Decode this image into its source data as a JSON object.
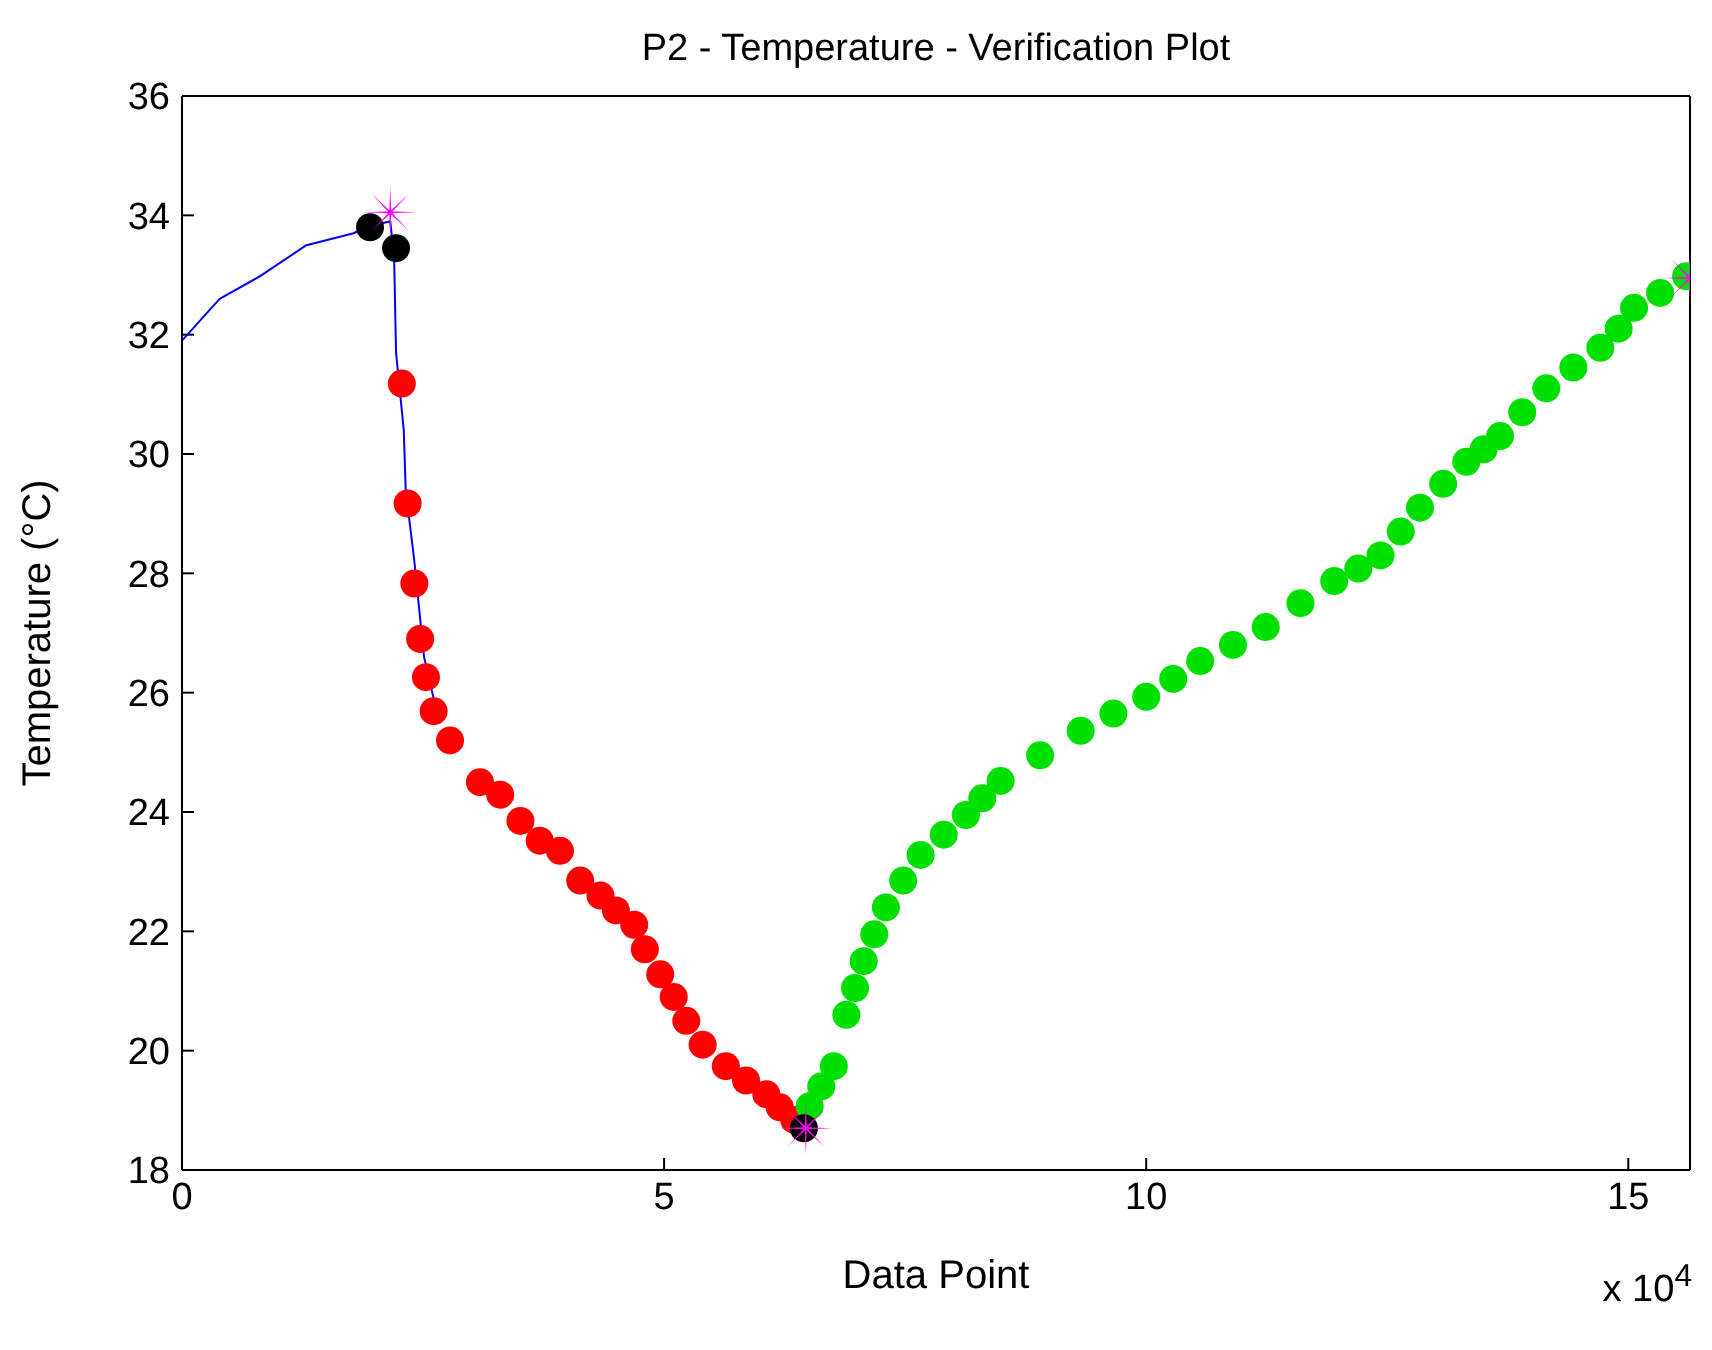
{
  "chart_data": {
    "type": "scatter",
    "title": "P2 - Temperature - Verification Plot",
    "xlabel": "Data Point",
    "ylabel": "Temperature (°C)",
    "annotations": [
      "x 10$^{4}$"
    ],
    "xlim": [
      0,
      15.64
    ],
    "xticks": [
      0,
      5,
      10,
      15
    ],
    "ylim": [
      18,
      36
    ],
    "yticks": [
      18,
      20,
      22,
      24,
      26,
      28,
      30,
      32,
      34,
      36
    ],
    "grid": false,
    "legend": false,
    "series": [
      {
        "type": "line",
        "marker": "none",
        "color": "#0000ff",
        "x": [
          0,
          0.39,
          0.81,
          1.29,
          1.78,
          1.91,
          2.16,
          2.2,
          2.22,
          2.3,
          2.32,
          2.41,
          2.51,
          2.61
        ],
        "values": [
          31.9,
          32.6,
          32.98,
          33.5,
          33.7,
          33.8,
          33.9,
          33.3,
          31.7,
          30.4,
          29.4,
          28.2,
          26.6,
          25.9
        ]
      },
      {
        "marker": "circle",
        "color": "#ff0000",
        "x": [
          2.28,
          2.34,
          2.41,
          2.47,
          2.53,
          2.61,
          2.78,
          3.09,
          3.3,
          3.51,
          3.71,
          3.92,
          4.13,
          4.34,
          4.5,
          4.69,
          4.8,
          4.96,
          5.1,
          5.23,
          5.4,
          5.64,
          5.85,
          6.06,
          6.2,
          6.35
        ],
        "values": [
          31.18,
          29.17,
          27.83,
          26.9,
          26.26,
          25.69,
          25.2,
          24.5,
          24.29,
          23.85,
          23.52,
          23.35,
          22.85,
          22.6,
          22.35,
          22.11,
          21.7,
          21.28,
          20.9,
          20.5,
          20.1,
          19.74,
          19.5,
          19.27,
          19.05,
          18.84
        ]
      },
      {
        "marker": "circle",
        "color": "#00e000",
        "x": [
          6.51,
          6.63,
          6.76,
          6.89,
          6.98,
          7.07,
          7.18,
          7.3,
          7.48,
          7.66,
          7.9,
          8.13,
          8.3,
          8.49,
          8.9,
          9.32,
          9.66,
          10.0,
          10.28,
          10.56,
          10.9,
          11.24,
          11.6,
          11.95,
          12.2,
          12.43,
          12.64,
          12.84,
          13.08,
          13.32,
          13.5,
          13.67,
          13.9,
          14.15,
          14.43,
          14.71,
          14.9,
          15.06,
          15.33,
          15.6
        ],
        "values": [
          19.07,
          19.4,
          19.74,
          20.6,
          21.05,
          21.5,
          21.95,
          22.4,
          22.85,
          23.28,
          23.62,
          23.95,
          24.23,
          24.52,
          24.95,
          25.36,
          25.65,
          25.93,
          26.23,
          26.53,
          26.8,
          27.1,
          27.5,
          27.87,
          28.08,
          28.3,
          28.7,
          29.1,
          29.5,
          29.87,
          30.08,
          30.3,
          30.7,
          31.1,
          31.45,
          31.78,
          32.1,
          32.45,
          32.7,
          32.98
        ]
      },
      {
        "marker": "circle",
        "color": "#000000",
        "x": [
          1.95,
          2.22,
          6.45
        ],
        "values": [
          33.8,
          33.45,
          18.7
        ]
      },
      {
        "type": "scatter",
        "marker": "star",
        "color": "#ff00ff",
        "x": [
          2.16,
          6.47,
          15.64
        ],
        "values": [
          34.05,
          18.7,
          32.95
        ]
      }
    ]
  }
}
